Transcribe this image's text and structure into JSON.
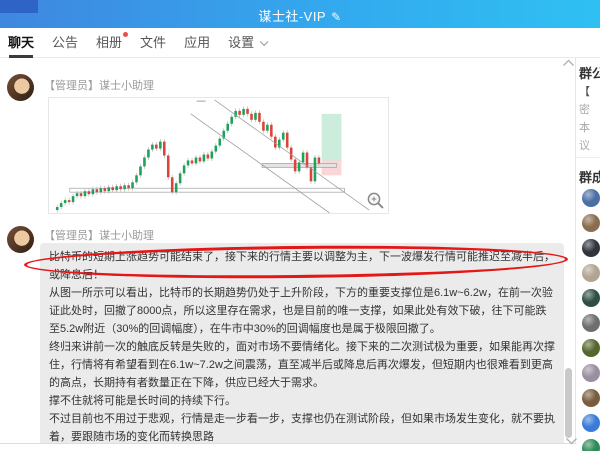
{
  "window": {
    "title": "谋士社-VIP",
    "edit_icon_glyph": "✎"
  },
  "tabs": {
    "items": [
      {
        "label": "聊天",
        "active": true
      },
      {
        "label": "公告",
        "active": false
      },
      {
        "label": "相册",
        "active": false,
        "badge": true
      },
      {
        "label": "文件",
        "active": false
      },
      {
        "label": "应用",
        "active": false
      },
      {
        "label": "设置",
        "active": false,
        "dropdown": true
      }
    ]
  },
  "chat": {
    "messages": [
      {
        "sender": "【管理员】谋士小助理",
        "type": "image-chart"
      },
      {
        "sender": "【管理员】谋士小助理",
        "type": "text",
        "paragraphs": [
          "比特币的短期上涨趋势可能结束了，接下来的行情主要以调整为主，下一波爆发行情可能推迟至减半后，或降息后！",
          "从图一所示可以看出，比特币的长期趋势仍处于上升阶段，下方的重要支撑位是6.1w~6.2w，在前一次验证此处时，回撤了8000点，所以这里存在需求，也是目前的唯一支撑，如果此处有效下破，往下可能跌至5.2w附近（30%的回调幅度），在牛市中30%的回调幅度也是属于极限回撤了。",
          "终归来讲前一次的触底反转是失败的，面对市场不要情绪化。接下来的二次测试极为重要，如果能再次撑住，行情将有希望看到在6.1w~7.2w之间震荡，直至减半后或降息后再次爆发，但短期内也很难看到更高的高点，长期持有者数量正在下降，供应已经大于需求。",
          "撑不住就将可能是长时间的持续下行。",
          "不过目前也不用过于悲观，行情是走一步看一步，支撑也仍在测试阶段，但如果市场发生变化，就不要执着，要跟随市场的变化而转换思路"
        ],
        "annotation": "red hand-drawn ellipse around first sentence"
      }
    ]
  },
  "chart": {
    "type": "candlestick",
    "description": "BTC price: uptrend from lower-left, mid peak, descending channel to the right, horizontal support zones, green target box above red stop box at right edge",
    "open_start": 113,
    "candles": [
      [
        6,
        110
      ],
      [
        10,
        106
      ],
      [
        14,
        103
      ],
      [
        18,
        105
      ],
      [
        22,
        99
      ],
      [
        26,
        96
      ],
      [
        30,
        99
      ],
      [
        34,
        94
      ],
      [
        38,
        97
      ],
      [
        42,
        92
      ],
      [
        46,
        95
      ],
      [
        50,
        91
      ],
      [
        54,
        94
      ],
      [
        58,
        90
      ],
      [
        62,
        93
      ],
      [
        66,
        89
      ],
      [
        70,
        92
      ],
      [
        74,
        88
      ],
      [
        78,
        91
      ],
      [
        82,
        85
      ],
      [
        86,
        78
      ],
      [
        90,
        69
      ],
      [
        94,
        60
      ],
      [
        98,
        52
      ],
      [
        102,
        47
      ],
      [
        106,
        51
      ],
      [
        110,
        44
      ],
      [
        114,
        58
      ],
      [
        118,
        80
      ],
      [
        122,
        95
      ],
      [
        126,
        86
      ],
      [
        130,
        76
      ],
      [
        134,
        68
      ],
      [
        138,
        63
      ],
      [
        142,
        66
      ],
      [
        146,
        60
      ],
      [
        150,
        64
      ],
      [
        154,
        57
      ],
      [
        158,
        61
      ],
      [
        162,
        54
      ],
      [
        166,
        48
      ],
      [
        170,
        41
      ],
      [
        174,
        33
      ],
      [
        178,
        26
      ],
      [
        182,
        19
      ],
      [
        186,
        13
      ],
      [
        190,
        17
      ],
      [
        194,
        11
      ],
      [
        198,
        16
      ],
      [
        202,
        22
      ],
      [
        206,
        15
      ],
      [
        210,
        24
      ],
      [
        214,
        33
      ],
      [
        218,
        27
      ],
      [
        222,
        39
      ],
      [
        226,
        50
      ],
      [
        230,
        42
      ],
      [
        234,
        35
      ],
      [
        238,
        50
      ],
      [
        242,
        62
      ],
      [
        246,
        74
      ],
      [
        250,
        65
      ],
      [
        254,
        55
      ],
      [
        258,
        70
      ],
      [
        262,
        84
      ],
      [
        266,
        60
      ],
      [
        270,
        66
      ]
    ],
    "channel_lines": [
      [
        166,
        2,
        322,
        113
      ],
      [
        142,
        16,
        282,
        116
      ]
    ],
    "support_bands": [
      [
        20,
        91,
        277,
        4
      ],
      [
        214,
        66,
        75,
        4
      ]
    ],
    "target_box_green": [
      274,
      16,
      20,
      47
    ],
    "stop_box_red": [
      274,
      63,
      20,
      15
    ],
    "colors": {
      "up": "#1ea15a",
      "down": "#d9453c",
      "line": "#9aa0a6",
      "green_zone": "rgba(72,185,128,0.28)",
      "red_zone": "rgba(235,90,90,0.25)"
    }
  },
  "right_panel": {
    "announcement_header": "群公告",
    "announcement_title_fragment": "【",
    "announcement_body_fragments": [
      "密",
      "本",
      "议"
    ],
    "members_header": "群成员",
    "member_avatar_colors": [
      "#4a6fa5",
      "#8a6d4f",
      "#30343c",
      "#b3a492",
      "#2f4f46",
      "#6e6e6e",
      "#55662f",
      "#9a8fa0",
      "#7a5c3e",
      "#3a7bd5",
      "#2e8b57"
    ]
  },
  "colors": {
    "titlebar_left": "#3f87e0",
    "titlebar_right": "#2fc0f2",
    "badge_red": "#f24b4b",
    "phone_green": "#35b56a",
    "bubble_gray": "#ebebeb",
    "annotation_red": "#e41717"
  }
}
